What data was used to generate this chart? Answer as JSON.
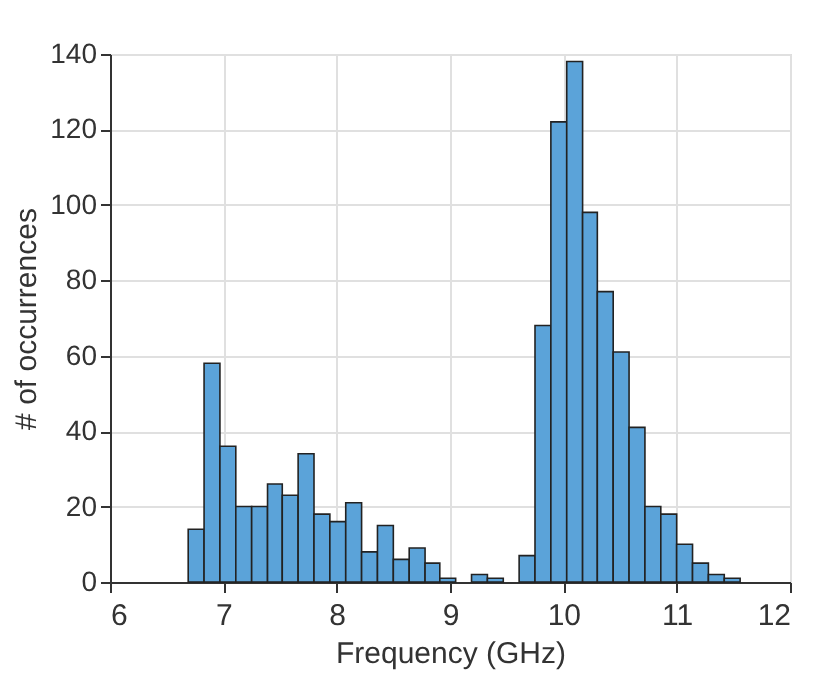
{
  "chart_data": {
    "type": "histogram",
    "xlabel": "Frequency (GHz)",
    "ylabel": "# of occurrences",
    "bins": [
      6.69,
      6.83,
      6.97,
      7.11,
      7.25,
      7.39,
      7.52,
      7.66,
      7.8,
      7.94,
      8.08,
      8.22,
      8.36,
      8.5,
      8.64,
      8.78,
      8.91,
      9.05,
      9.19,
      9.33,
      9.47,
      9.61,
      9.75,
      9.89,
      10.03,
      10.17,
      10.3,
      10.44,
      10.58,
      10.72,
      10.86,
      11.0,
      11.14,
      11.28,
      11.42,
      11.56
    ],
    "values": [
      14,
      58,
      36,
      20,
      20,
      26,
      23,
      34,
      18,
      16,
      21,
      8,
      15,
      6,
      9,
      5,
      1,
      0,
      2,
      1,
      0,
      7,
      68,
      122,
      138,
      98,
      77,
      61,
      41,
      20,
      18,
      10,
      5,
      2,
      1
    ],
    "color": "#5ba3d9",
    "xlim": [
      6,
      12
    ],
    "xticks": [
      6,
      7,
      8,
      9,
      10,
      11,
      12
    ],
    "ylim": [
      0,
      140
    ],
    "yticks": [
      0,
      20,
      40,
      60,
      80,
      100,
      120,
      140
    ],
    "grid": true
  }
}
